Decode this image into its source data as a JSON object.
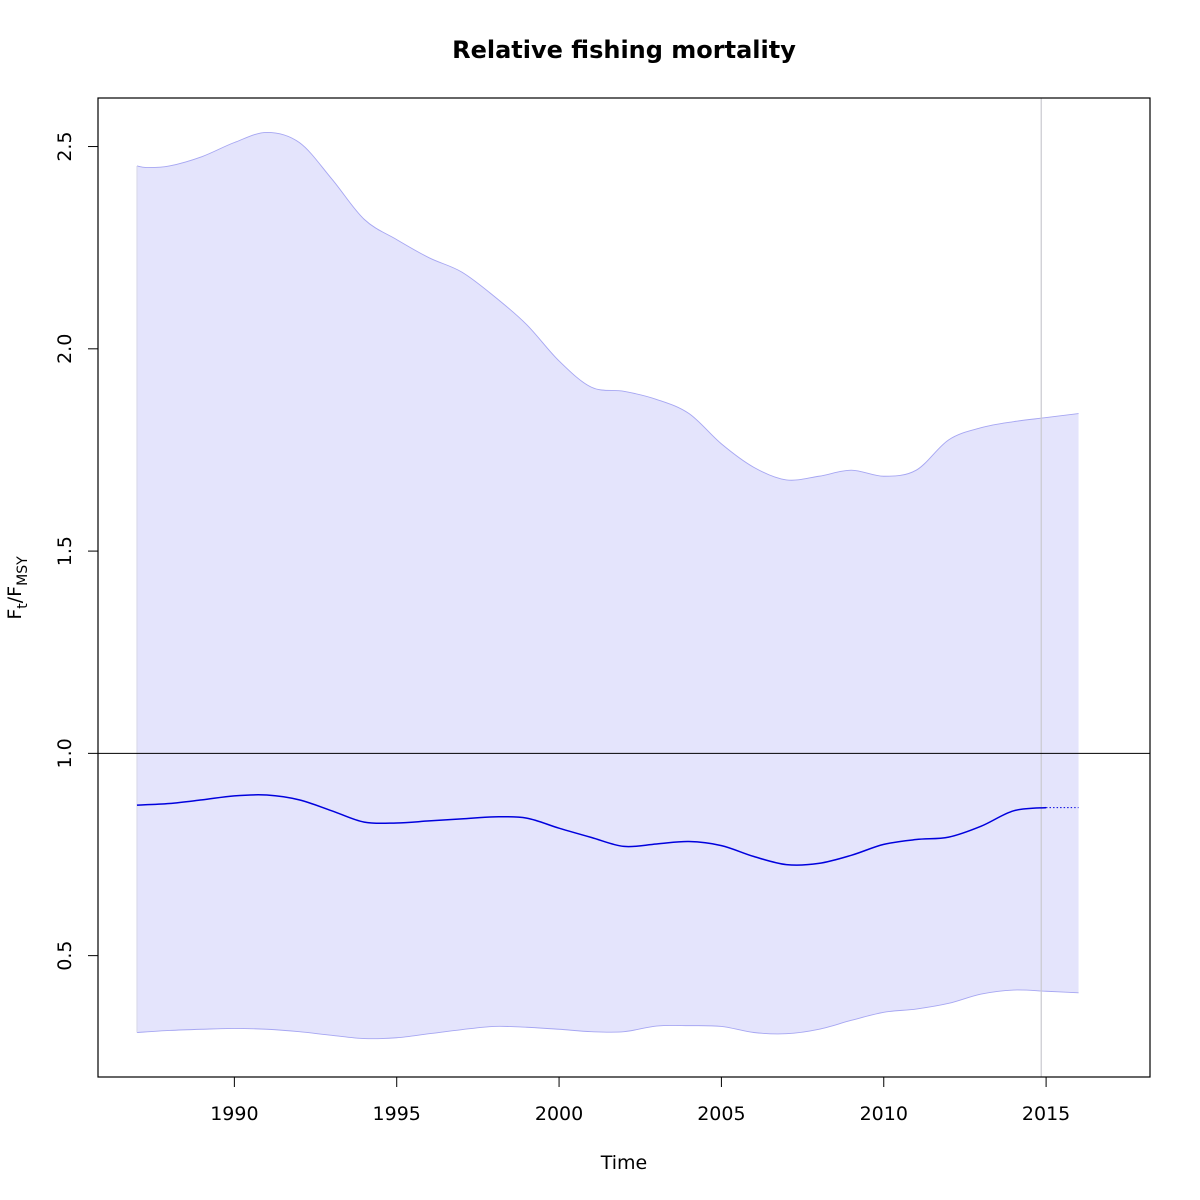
{
  "chart_data": {
    "type": "line",
    "title": "Relative fishing mortality",
    "xlabel": "Time",
    "ylabel": {
      "main1": "F",
      "sub1": "t",
      "slash": "/",
      "main2": "F",
      "sub2": "MSY"
    },
    "xlim": [
      1985.8,
      2018.2
    ],
    "ylim": [
      0.2,
      2.62
    ],
    "x_ticks": [
      {
        "value": 1990,
        "label": "1990"
      },
      {
        "value": 1995,
        "label": "1995"
      },
      {
        "value": 2000,
        "label": "2000"
      },
      {
        "value": 2005,
        "label": "2005"
      },
      {
        "value": 2010,
        "label": "2010"
      },
      {
        "value": 2015,
        "label": "2015"
      }
    ],
    "y_ticks": [
      {
        "value": 0.5,
        "label": "0.5"
      },
      {
        "value": 1.0,
        "label": "1.0"
      },
      {
        "value": 1.5,
        "label": "1.5"
      },
      {
        "value": 2.0,
        "label": "2.0"
      },
      {
        "value": 2.5,
        "label": "2.5"
      }
    ],
    "reference_line_y": 1.0,
    "vertical_line_x": 2014.85,
    "colors": {
      "band_fill": "#e4e4fc",
      "band_edge": "#a6a6f2",
      "estimate_line": "#0000dd",
      "reference_line": "#000000",
      "vertical_line": "#c9c9cf",
      "frame": "#000000"
    },
    "series": [
      {
        "role": "estimate",
        "x": [
          1987,
          1988,
          1989,
          1990,
          1991,
          1992,
          1993,
          1994,
          1995,
          1996,
          1997,
          1998,
          1999,
          2000,
          2001,
          2002,
          2003,
          2004,
          2005,
          2006,
          2007,
          2008,
          2009,
          2010,
          2011,
          2012,
          2013,
          2014,
          2015
        ],
        "y": [
          0.872,
          0.876,
          0.885,
          0.895,
          0.897,
          0.885,
          0.858,
          0.83,
          0.828,
          0.833,
          0.838,
          0.843,
          0.84,
          0.815,
          0.792,
          0.77,
          0.776,
          0.782,
          0.772,
          0.745,
          0.725,
          0.728,
          0.748,
          0.775,
          0.787,
          0.793,
          0.82,
          0.858,
          0.866
        ]
      },
      {
        "role": "projection",
        "x": [
          2015,
          2016
        ],
        "y": [
          0.866,
          0.866
        ]
      },
      {
        "role": "upper_bound",
        "x": [
          1987,
          1987.3,
          1988,
          1989,
          1990,
          1991,
          1992,
          1993,
          1994,
          1995,
          1996,
          1997,
          1998,
          1999,
          2000,
          2001,
          2002,
          2003,
          2004,
          2005,
          2006,
          2007,
          2008,
          2009,
          2010,
          2011,
          2012,
          2013,
          2014,
          2015,
          2016
        ],
        "y": [
          2.452,
          2.448,
          2.452,
          2.475,
          2.51,
          2.535,
          2.51,
          2.42,
          2.32,
          2.27,
          2.225,
          2.19,
          2.13,
          2.06,
          1.97,
          1.905,
          1.895,
          1.875,
          1.84,
          1.765,
          1.707,
          1.676,
          1.685,
          1.7,
          1.685,
          1.7,
          1.775,
          1.805,
          1.82,
          1.83,
          1.84
        ]
      },
      {
        "role": "lower_bound",
        "x": [
          1987,
          1988,
          1989,
          1990,
          1991,
          1992,
          1993,
          1994,
          1995,
          1996,
          1997,
          1998,
          1999,
          2000,
          2001,
          2002,
          2003,
          2004,
          2005,
          2006,
          2007,
          2008,
          2009,
          2010,
          2011,
          2012,
          2013,
          2014,
          2015,
          2016
        ],
        "y": [
          0.31,
          0.315,
          0.318,
          0.32,
          0.318,
          0.312,
          0.303,
          0.295,
          0.297,
          0.307,
          0.317,
          0.325,
          0.323,
          0.318,
          0.312,
          0.312,
          0.326,
          0.327,
          0.325,
          0.31,
          0.307,
          0.318,
          0.34,
          0.36,
          0.368,
          0.382,
          0.405,
          0.415,
          0.412,
          0.408
        ]
      }
    ]
  }
}
